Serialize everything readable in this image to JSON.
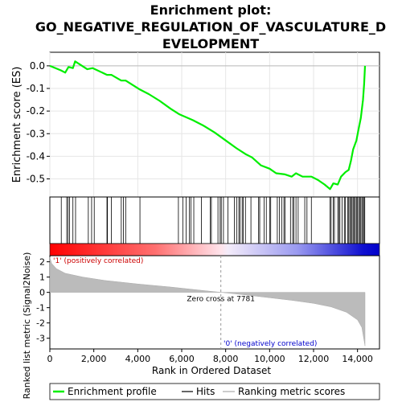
{
  "chart_data": {
    "type": "line",
    "title_line1": "Enrichment plot:",
    "title_line2": "GO_NEGATIVE_REGULATION_OF_VASCULATURE_D",
    "title_line3": "EVELOPMENT",
    "es_panel": {
      "ylabel": "Enrichment score (ES)",
      "ylim": [
        -0.58,
        0.06
      ],
      "yticks": [
        {
          "v": 0.0,
          "label": "0.0"
        },
        {
          "v": -0.1,
          "label": "-0.1"
        },
        {
          "v": -0.2,
          "label": "-0.2"
        },
        {
          "v": -0.3,
          "label": "-0.3"
        },
        {
          "v": -0.4,
          "label": "-0.4"
        },
        {
          "v": -0.5,
          "label": "-0.5"
        }
      ],
      "series_color": "#00ee00",
      "points": [
        [
          0,
          0.0
        ],
        [
          500,
          -0.02
        ],
        [
          700,
          -0.03
        ],
        [
          850,
          -0.005
        ],
        [
          1050,
          -0.01
        ],
        [
          1150,
          0.02
        ],
        [
          1700,
          -0.015
        ],
        [
          1950,
          -0.01
        ],
        [
          2600,
          -0.04
        ],
        [
          2800,
          -0.04
        ],
        [
          3250,
          -0.065
        ],
        [
          3450,
          -0.065
        ],
        [
          4100,
          -0.105
        ],
        [
          4500,
          -0.125
        ],
        [
          5000,
          -0.155
        ],
        [
          5500,
          -0.19
        ],
        [
          5900,
          -0.215
        ],
        [
          6500,
          -0.24
        ],
        [
          7000,
          -0.265
        ],
        [
          7500,
          -0.295
        ],
        [
          8000,
          -0.33
        ],
        [
          8500,
          -0.365
        ],
        [
          8900,
          -0.39
        ],
        [
          9200,
          -0.405
        ],
        [
          9600,
          -0.44
        ],
        [
          10000,
          -0.455
        ],
        [
          10300,
          -0.475
        ],
        [
          10700,
          -0.48
        ],
        [
          11000,
          -0.49
        ],
        [
          11200,
          -0.475
        ],
        [
          11500,
          -0.49
        ],
        [
          11900,
          -0.49
        ],
        [
          12200,
          -0.505
        ],
        [
          12500,
          -0.525
        ],
        [
          12750,
          -0.545
        ],
        [
          12900,
          -0.52
        ],
        [
          13100,
          -0.525
        ],
        [
          13250,
          -0.49
        ],
        [
          13450,
          -0.47
        ],
        [
          13600,
          -0.46
        ],
        [
          13700,
          -0.42
        ],
        [
          13800,
          -0.37
        ],
        [
          13950,
          -0.33
        ],
        [
          14050,
          -0.28
        ],
        [
          14150,
          -0.23
        ],
        [
          14250,
          -0.15
        ],
        [
          14300,
          -0.08
        ],
        [
          14340,
          0.0
        ]
      ]
    },
    "hits_panel": {
      "hit_ranks": [
        520,
        770,
        830,
        900,
        1050,
        1170,
        1750,
        1900,
        2020,
        2600,
        2620,
        2800,
        3250,
        3350,
        3450,
        4100,
        5850,
        6050,
        6200,
        6350,
        6420,
        6550,
        6900,
        7300,
        7350,
        7650,
        7750,
        7800,
        7900,
        8100,
        8400,
        8500,
        8600,
        8650,
        8750,
        8800,
        8900,
        9150,
        9500,
        9550,
        9750,
        9850,
        10000,
        10050,
        10350,
        10450,
        10550,
        10650,
        10700,
        10950,
        11050,
        11100,
        11200,
        11300,
        11600,
        11700,
        11900,
        12750,
        12800,
        12900,
        12950,
        13100,
        13150,
        13200,
        13300,
        13400,
        13450,
        13550,
        13600,
        13650,
        13700,
        13750,
        13800,
        13850,
        13900,
        13950,
        14000,
        14050,
        14100,
        14150,
        14200,
        14250,
        14300,
        14330
      ],
      "label_positive": "'1' (positively correlated)",
      "label_negative": "'0' (negatively correlated)"
    },
    "ranked_panel": {
      "ylabel": "Ranked list metric (Signal2Noise)",
      "ylim": [
        -3.7,
        2.4
      ],
      "yticks": [
        {
          "v": 2,
          "label": "2"
        },
        {
          "v": 1,
          "label": "1"
        },
        {
          "v": 0,
          "label": "0"
        },
        {
          "v": -1,
          "label": "-1"
        },
        {
          "v": -2,
          "label": "-2"
        },
        {
          "v": -3,
          "label": "-3"
        }
      ],
      "profile": [
        [
          0,
          2.3
        ],
        [
          80,
          1.9
        ],
        [
          300,
          1.55
        ],
        [
          700,
          1.25
        ],
        [
          1500,
          1.0
        ],
        [
          2500,
          0.78
        ],
        [
          4000,
          0.55
        ],
        [
          5500,
          0.35
        ],
        [
          7000,
          0.12
        ],
        [
          7781,
          0.0
        ],
        [
          8800,
          -0.15
        ],
        [
          10000,
          -0.35
        ],
        [
          11000,
          -0.52
        ],
        [
          12000,
          -0.72
        ],
        [
          12800,
          -0.95
        ],
        [
          13500,
          -1.3
        ],
        [
          14000,
          -1.8
        ],
        [
          14200,
          -2.3
        ],
        [
          14340,
          -3.5
        ]
      ],
      "zero_cross_label": "Zero cross at 7781",
      "zero_cross_rank": 7781
    },
    "x_axis": {
      "xlabel": "Rank in Ordered Dataset",
      "xlim": [
        0,
        15000
      ],
      "n_genes": 14340,
      "xticks": [
        {
          "v": 0,
          "label": "0"
        },
        {
          "v": 2000,
          "label": "2,000"
        },
        {
          "v": 4000,
          "label": "4,000"
        },
        {
          "v": 6000,
          "label": "6,000"
        },
        {
          "v": 8000,
          "label": "8,000"
        },
        {
          "v": 10000,
          "label": "10,000"
        },
        {
          "v": 12000,
          "label": "12,000"
        },
        {
          "v": 14000,
          "label": "14,000"
        }
      ]
    },
    "legend": {
      "placement": "bottom",
      "items": [
        {
          "label": "Enrichment profile",
          "color": "#00ee00"
        },
        {
          "label": "Hits",
          "color": "#000000"
        },
        {
          "label": "Ranking metric scores",
          "color": "#bbbbbb"
        }
      ]
    }
  }
}
